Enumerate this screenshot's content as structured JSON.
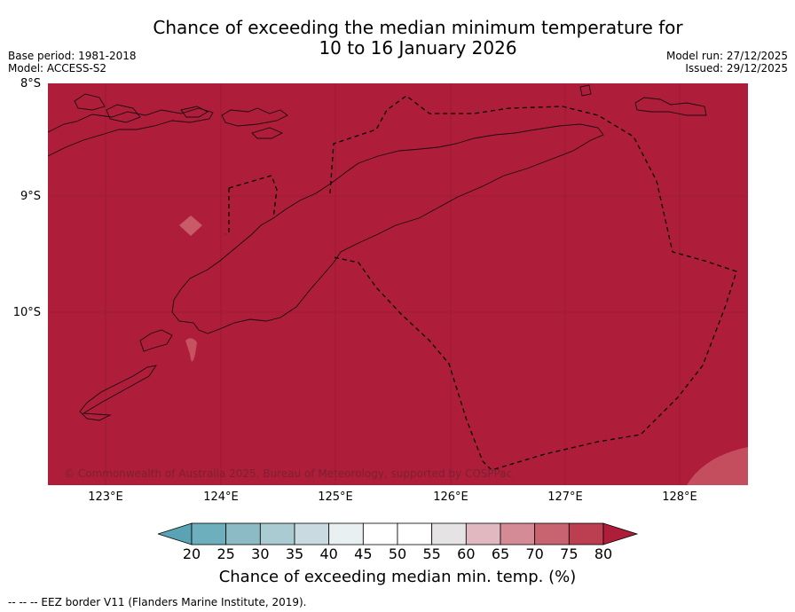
{
  "title_line1": "Chance of exceeding the median minimum temperature for",
  "title_line2": "10 to 16 January 2026",
  "base_period": "Base period: 1981-2018",
  "model": "Model: ACCESS-S2",
  "model_run": "Model run: 27/12/2025",
  "issued": "Issued: 29/12/2025",
  "lat_labels": [
    "8°S",
    "9°S",
    "10°S"
  ],
  "lon_labels": [
    "123°E",
    "124°E",
    "125°E",
    "126°E",
    "127°E",
    "128°E"
  ],
  "copyright": "© Commonwealth of Australia 2025, Bureau of Meteorology, supported by COSPPac",
  "colorbar": {
    "ticks": [
      "20",
      "25",
      "30",
      "35",
      "40",
      "45",
      "50",
      "55",
      "60",
      "65",
      "70",
      "75",
      "80"
    ],
    "colors": [
      "#5aa3b4",
      "#6eafbd",
      "#8cbbc6",
      "#a9cbd1",
      "#c9dbe0",
      "#e8f0f2",
      "#ffffff",
      "#ffffff",
      "#e6e3e4",
      "#e2b8c0",
      "#d58b95",
      "#c8646f",
      "#bb3f50",
      "#ae1e3a"
    ],
    "label": "Chance of exceeding median min. temp. (%)"
  },
  "footer": "--  --  -- EEZ border V11 (Flanders Marine Institute, 2019).",
  "map_colors": {
    "dominant": "#ae1e3a",
    "light_patch": "#c95a68"
  }
}
